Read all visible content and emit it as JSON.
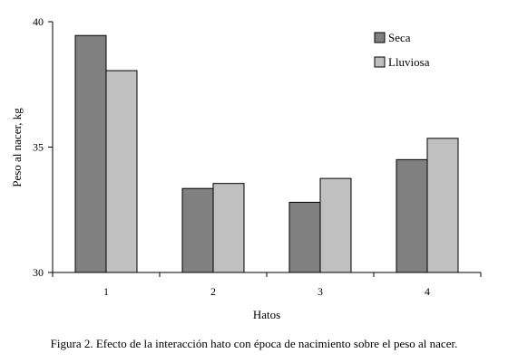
{
  "chart_data": {
    "type": "bar",
    "categories": [
      "1",
      "2",
      "3",
      "4"
    ],
    "series": [
      {
        "name": "Seca",
        "values": [
          39.45,
          33.35,
          32.8,
          34.5
        ],
        "color": "#808080"
      },
      {
        "name": "Lluviosa",
        "values": [
          38.05,
          33.55,
          33.75,
          35.35
        ],
        "color": "#c0c0c0"
      }
    ],
    "title": "",
    "xlabel": "Hatos",
    "ylabel": "Peso al nacer, kg",
    "ylim": [
      30,
      40
    ],
    "yticks": [
      30,
      35,
      40
    ],
    "grid": false,
    "legend_position": "top-right"
  },
  "caption": "Figura 2. Efecto de la interacción hato con época de nacimiento sobre el peso al nacer."
}
